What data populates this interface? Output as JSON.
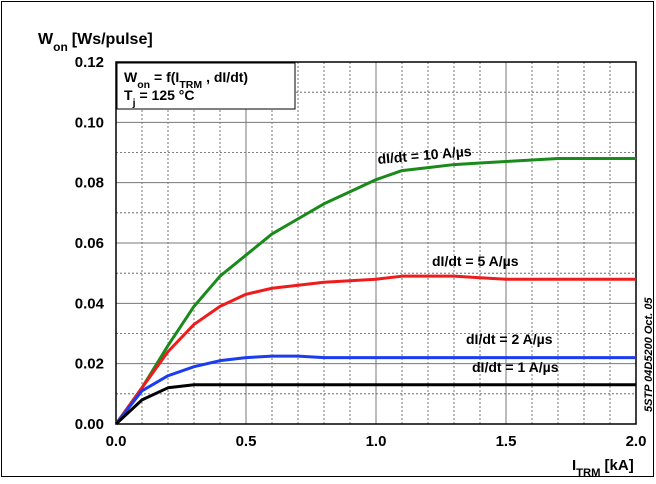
{
  "chart_data": {
    "type": "line",
    "y_label": [
      {
        "text": "W"
      },
      {
        "text": "on",
        "sub": true
      },
      {
        "text": "[Ws/pulse]"
      }
    ],
    "x_label": [
      {
        "text": "I"
      },
      {
        "text": "TRM",
        "sub": true
      },
      {
        "text": "[kA]"
      }
    ],
    "annotation": [
      [
        {
          "text": "W"
        },
        {
          "text": "on",
          "sub": true
        },
        {
          "text": "= f(I"
        },
        {
          "text": "TRM",
          "sub": true
        },
        {
          "text": ", dI/dt)"
        }
      ],
      [
        {
          "text": "T"
        },
        {
          "text": "j",
          "sub": true
        },
        {
          "text": "= 125 °C"
        }
      ]
    ],
    "side_note": "5STP 04D5200 Oct. 05",
    "x": [
      0,
      0.1,
      0.2,
      0.3,
      0.4,
      0.5,
      0.6,
      0.7,
      0.8,
      0.9,
      1.0,
      1.1,
      1.2,
      1.3,
      1.4,
      1.5,
      1.6,
      1.7,
      1.8,
      1.9,
      2.0
    ],
    "series": [
      {
        "name": "dI/dt = 10 A/µs",
        "color": "#1a8a1a",
        "values": [
          0,
          0.012,
          0.026,
          0.039,
          0.049,
          0.056,
          0.063,
          0.068,
          0.073,
          0.077,
          0.081,
          0.084,
          0.085,
          0.086,
          0.0865,
          0.087,
          0.0875,
          0.088,
          0.088,
          0.088,
          0.088
        ]
      },
      {
        "name": "dI/dt = 5 A/µs",
        "color": "#ee1c1c",
        "values": [
          0,
          0.012,
          0.024,
          0.033,
          0.039,
          0.043,
          0.045,
          0.046,
          0.047,
          0.0475,
          0.048,
          0.049,
          0.049,
          0.049,
          0.0485,
          0.048,
          0.048,
          0.048,
          0.048,
          0.048,
          0.048
        ]
      },
      {
        "name": "dI/dt = 2 A/µs",
        "color": "#1c3cf0",
        "values": [
          0,
          0.011,
          0.016,
          0.019,
          0.021,
          0.022,
          0.0225,
          0.0225,
          0.022,
          0.022,
          0.022,
          0.022,
          0.022,
          0.022,
          0.022,
          0.022,
          0.022,
          0.022,
          0.022,
          0.022,
          0.022
        ]
      },
      {
        "name": "dI/dt = 1 A/µs",
        "color": "#000000",
        "values": [
          0,
          0.008,
          0.012,
          0.013,
          0.013,
          0.013,
          0.013,
          0.013,
          0.013,
          0.013,
          0.013,
          0.013,
          0.013,
          0.013,
          0.013,
          0.013,
          0.013,
          0.013,
          0.013,
          0.013,
          0.013
        ]
      }
    ],
    "xlim": [
      0,
      2.0
    ],
    "ylim": [
      0,
      0.12
    ],
    "xticks": [
      {
        "value": 0,
        "label": "0.0"
      },
      {
        "value": 0.5,
        "label": "0.5"
      },
      {
        "value": 1.0,
        "label": "1.0"
      },
      {
        "value": 1.5,
        "label": "1.5"
      },
      {
        "value": 2.0,
        "label": "2.0"
      }
    ],
    "yticks": [
      {
        "value": 0,
        "label": "0.00"
      },
      {
        "value": 0.02,
        "label": "0.02"
      },
      {
        "value": 0.04,
        "label": "0.04"
      },
      {
        "value": 0.06,
        "label": "0.06"
      },
      {
        "value": 0.08,
        "label": "0.08"
      },
      {
        "value": 0.1,
        "label": "0.10"
      },
      {
        "value": 0.12,
        "label": "0.12"
      }
    ],
    "minor_xticks": [
      0.1,
      0.2,
      0.3,
      0.4,
      0.6,
      0.7,
      0.8,
      0.9,
      1.1,
      1.2,
      1.3,
      1.4,
      1.6,
      1.7,
      1.8,
      1.9
    ],
    "minor_yticks": [
      0.01,
      0.03,
      0.05,
      0.07,
      0.09,
      0.11
    ],
    "grid": true
  }
}
